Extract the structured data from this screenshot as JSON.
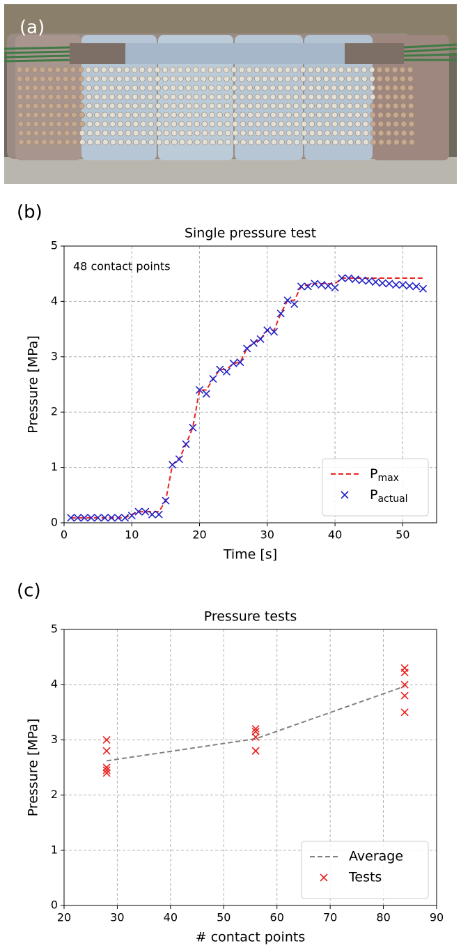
{
  "photo": {
    "label": "(a)"
  },
  "chart_data": [
    {
      "type": "line",
      "panel_label": "(b)",
      "title": "Single pressure test",
      "annotation": "48 contact points",
      "x_label": "Time [s]",
      "y_label": "Pressure [MPa]",
      "x": [
        1,
        2,
        3,
        4,
        5,
        6,
        7,
        8,
        9,
        10,
        11,
        12,
        13,
        14,
        15,
        16,
        17,
        18,
        19,
        20,
        21,
        22,
        23,
        24,
        25,
        26,
        27,
        28,
        29,
        30,
        31,
        32,
        33,
        34,
        35,
        36,
        37,
        38,
        39,
        40,
        41,
        42,
        43,
        44,
        45,
        46,
        47,
        48,
        49,
        50,
        51,
        52,
        53
      ],
      "series": [
        {
          "name": "Pmax",
          "color": "#e8231f",
          "line_style": "dashed",
          "values": [
            0.09,
            0.09,
            0.09,
            0.09,
            0.09,
            0.09,
            0.09,
            0.09,
            0.09,
            0.15,
            0.2,
            0.2,
            0.2,
            0.2,
            0.4,
            1.05,
            1.15,
            1.42,
            1.72,
            2.4,
            2.4,
            2.6,
            2.77,
            2.77,
            2.88,
            2.9,
            3.15,
            3.25,
            3.32,
            3.48,
            3.48,
            3.78,
            4.02,
            4.02,
            4.27,
            4.3,
            4.32,
            4.32,
            4.32,
            4.32,
            4.42,
            4.42,
            4.42,
            4.42,
            4.42,
            4.42,
            4.42,
            4.42,
            4.42,
            4.42,
            4.42,
            4.42,
            4.42
          ]
        },
        {
          "name": "Pactual",
          "color": "#1f1fc8",
          "marker": "x",
          "values": [
            0.09,
            0.09,
            0.09,
            0.09,
            0.09,
            0.09,
            0.09,
            0.09,
            0.09,
            0.13,
            0.2,
            0.2,
            0.15,
            0.15,
            0.4,
            1.05,
            1.15,
            1.42,
            1.72,
            2.4,
            2.33,
            2.6,
            2.77,
            2.73,
            2.88,
            2.9,
            3.15,
            3.25,
            3.32,
            3.48,
            3.45,
            3.78,
            4.02,
            3.95,
            4.27,
            4.27,
            4.32,
            4.3,
            4.28,
            4.25,
            4.42,
            4.42,
            4.4,
            4.38,
            4.37,
            4.35,
            4.33,
            4.32,
            4.3,
            4.3,
            4.28,
            4.27,
            4.23
          ]
        }
      ],
      "xlim": [
        0,
        55
      ],
      "xticks": [
        0,
        10,
        20,
        30,
        40,
        50
      ],
      "ylim": [
        0,
        5
      ],
      "yticks": [
        0,
        1,
        2,
        3,
        4,
        5
      ],
      "grid": true,
      "legend": "lower right",
      "legend_subscript": true
    },
    {
      "type": "line",
      "panel_label": "(c)",
      "title": "Pressure tests",
      "x_label": "# contact points",
      "y_label": "Pressure [MPa]",
      "series": [
        {
          "name": "Average",
          "color": "#808080",
          "line_style": "dashed",
          "x": [
            28,
            56,
            84
          ],
          "values": [
            2.62,
            3.02,
            3.97
          ]
        },
        {
          "name": "Tests",
          "color": "#e8231f",
          "marker": "x",
          "x": [
            28,
            28,
            28,
            28,
            28,
            56,
            56,
            56,
            56,
            56,
            84,
            84,
            84,
            84,
            84
          ],
          "values": [
            3.0,
            2.8,
            2.5,
            2.45,
            2.4,
            3.2,
            3.15,
            3.05,
            2.8,
            2.8,
            4.3,
            4.22,
            4.0,
            3.8,
            3.5
          ]
        }
      ],
      "xlim": [
        20,
        90
      ],
      "xticks": [
        20,
        30,
        40,
        50,
        60,
        70,
        80,
        90
      ],
      "ylim": [
        0,
        5
      ],
      "yticks": [
        0,
        1,
        2,
        3,
        4,
        5
      ],
      "grid": true,
      "legend": "lower right",
      "legend_subscript": false
    }
  ]
}
